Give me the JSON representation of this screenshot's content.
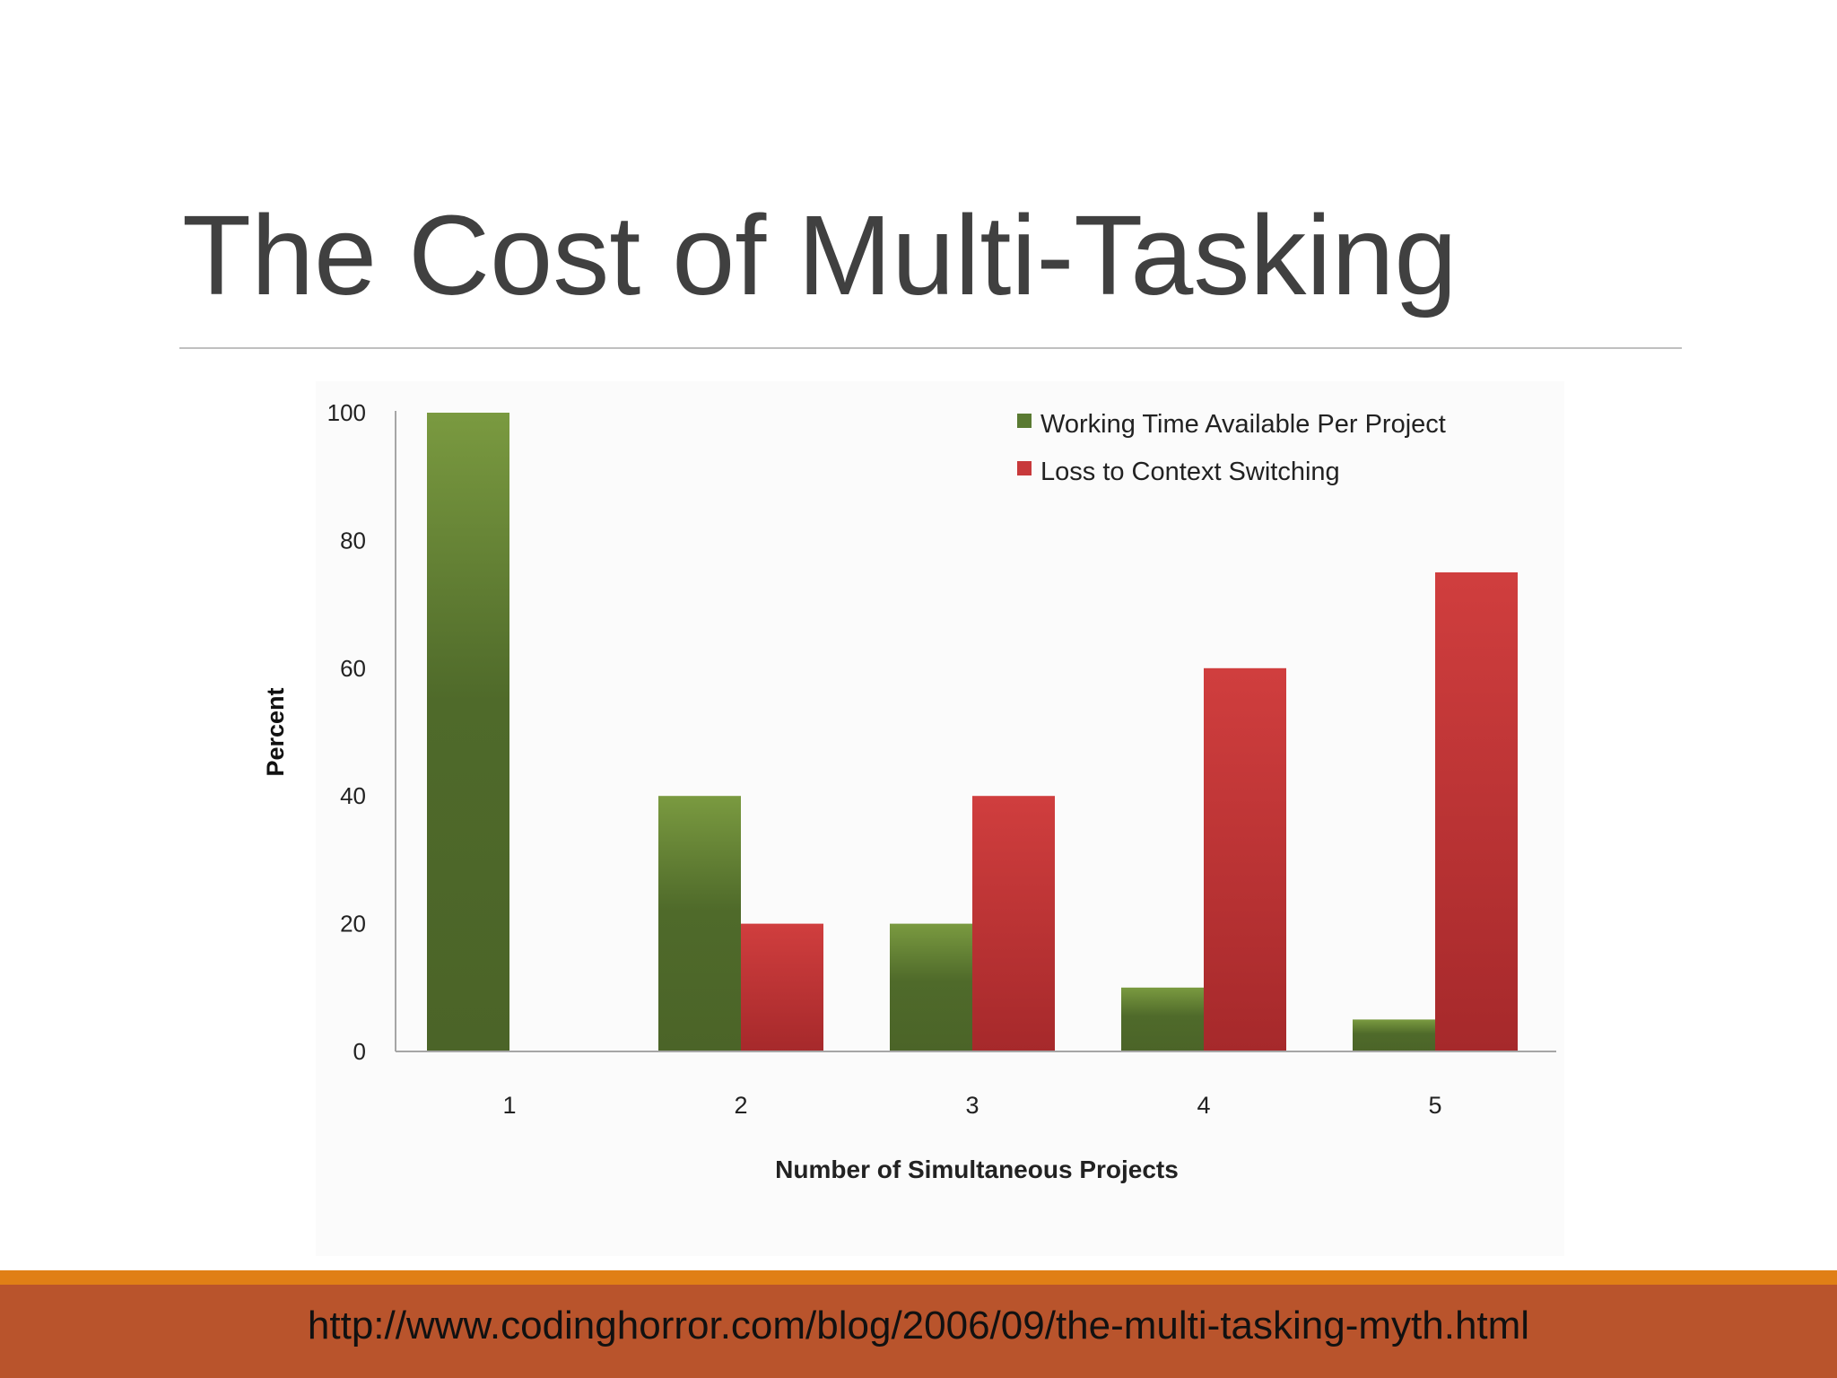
{
  "slide": {
    "title": "The Cost of Multi-Tasking",
    "footer_url": "http://www.codinghorror.com/blog/2006/09/the-multi-tasking-myth.html"
  },
  "colors": {
    "working_time": "#5a7a32",
    "context_switching": "#c8393b",
    "footer_bar": "#b9542c",
    "footer_accent": "#e07f16"
  },
  "chart_data": {
    "type": "bar",
    "xlabel": "Number of Simultaneous Projects",
    "ylabel": "Percent",
    "categories": [
      "1",
      "2",
      "3",
      "4",
      "5"
    ],
    "ylim": [
      0,
      100
    ],
    "yticks": [
      0,
      20,
      40,
      60,
      80,
      100
    ],
    "grid": false,
    "legend_position": "top-right",
    "series": [
      {
        "name": "Working Time Available Per Project",
        "values": [
          100,
          40,
          20,
          10,
          5
        ]
      },
      {
        "name": "Loss to Context Switching",
        "values": [
          0,
          20,
          40,
          60,
          75
        ]
      }
    ]
  }
}
